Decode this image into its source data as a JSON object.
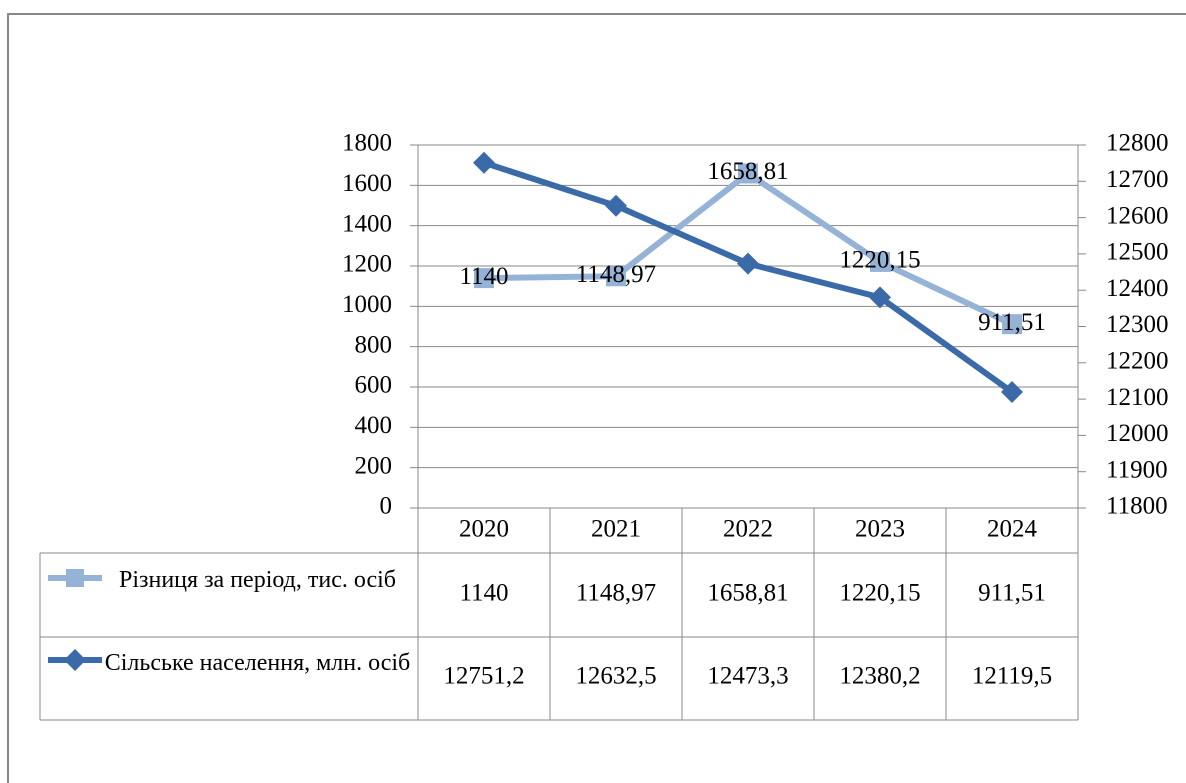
{
  "chart_data": {
    "type": "line",
    "categories": [
      "2020",
      "2021",
      "2022",
      "2023",
      "2024"
    ],
    "series": [
      {
        "name": "Різниця за період, тис. осіб",
        "color": "#95b3d7",
        "marker": "square",
        "values": [
          1140,
          1148.97,
          1658.81,
          1220.15,
          911.51
        ],
        "value_labels": [
          "1140",
          "1148,97",
          "1658,81",
          "1220,15",
          "911,51"
        ]
      },
      {
        "name": "Сільське населення, млн. осіб",
        "color": "#3b6aa8",
        "marker": "diamond",
        "axis": "y2",
        "values": [
          12751.2,
          12632.5,
          12473.3,
          12380.2,
          12119.5
        ],
        "value_labels": [
          "12751,2",
          "12632,5",
          "12473,3",
          "12380,2",
          "12119,5"
        ]
      }
    ],
    "ylim": [
      0,
      1800
    ],
    "yticks": [
      0,
      200,
      400,
      600,
      800,
      1000,
      1200,
      1400,
      1600,
      1800
    ],
    "y2lim": [
      11800,
      12800
    ],
    "y2ticks": [
      11800,
      11900,
      12000,
      12100,
      12200,
      12300,
      12400,
      12500,
      12600,
      12700,
      12800
    ],
    "grid": true,
    "data_table": true
  }
}
